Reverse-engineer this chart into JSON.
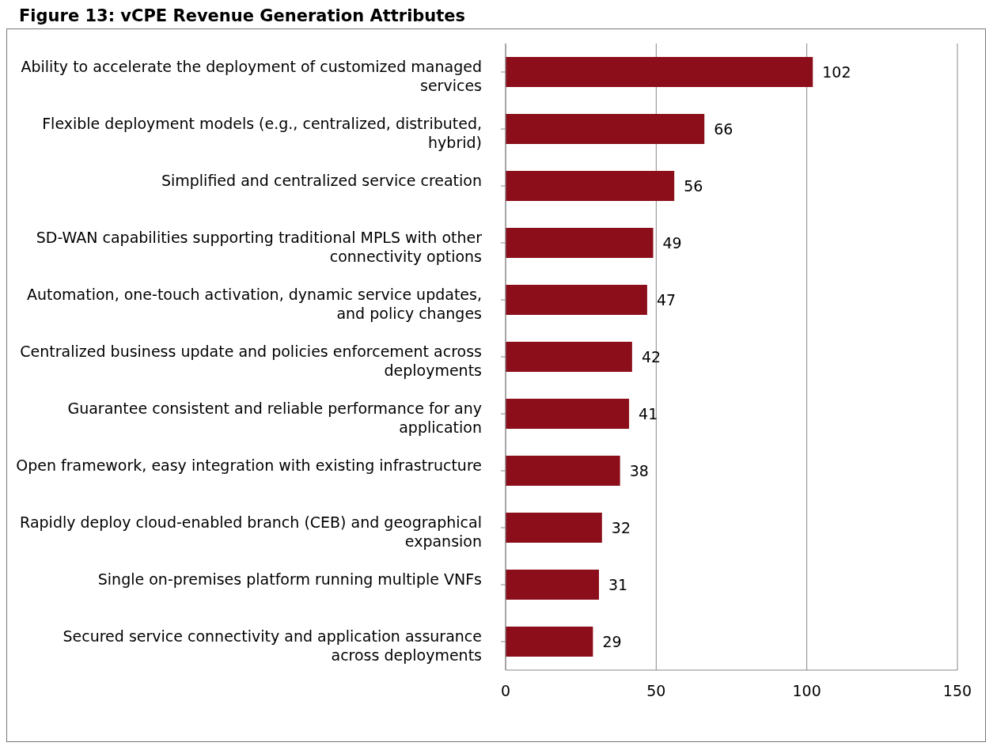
{
  "chart_data": {
    "type": "bar",
    "orientation": "horizontal",
    "title": "Figure 13: vCPE Revenue Generation Attributes",
    "categories": [
      "Ability to accelerate the deployment of customized managed services",
      "Flexible deployment models (e.g., centralized, distributed, hybrid)",
      "Simplified and centralized service creation",
      "SD-WAN capabilities supporting traditional MPLS with other connectivity options",
      "Automation, one-touch activation, dynamic service updates, and policy changes",
      "Centralized business update and policies enforcement across deployments",
      "Guarantee consistent and reliable performance for any application",
      "Open framework, easy integration with existing infrastructure",
      "Rapidly deploy cloud-enabled branch (CEB) and geographical expansion",
      "Single on-premises platform running multiple VNFs",
      "Secured service connectivity and application assurance across deployments"
    ],
    "values": [
      102,
      66,
      56,
      49,
      47,
      42,
      41,
      38,
      32,
      31,
      29
    ],
    "color": "#8b0e1a",
    "xlim": [
      0,
      150
    ],
    "xticks": [
      0,
      50,
      100,
      150
    ],
    "grid": "x",
    "data_labels": true,
    "legend": false
  }
}
